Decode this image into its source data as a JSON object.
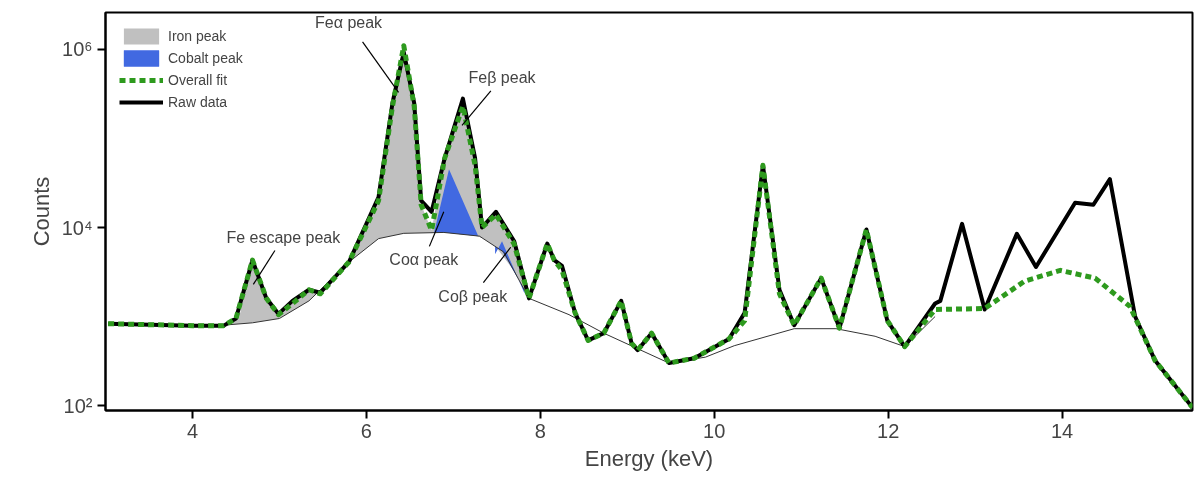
{
  "chart_data": {
    "type": "line",
    "xlabel": "Energy (keV)",
    "ylabel": "Counts",
    "log": "y",
    "grid": false,
    "legend": "top left",
    "xlim": [
      3,
      15.5
    ],
    "ylim": [
      88,
      2600000
    ],
    "xticks": [
      4,
      6,
      8,
      10,
      12,
      14
    ],
    "yticks": [
      {
        "value": 100,
        "label": "10²"
      },
      {
        "value": 10000,
        "label": "10⁴"
      },
      {
        "value": 1000000,
        "label": "10⁶"
      }
    ],
    "series": [
      {
        "name": "Iron peak",
        "type": "area",
        "color": "#c0c0c0",
        "x": [
          4.4,
          4.55,
          4.69,
          4.85,
          4.99,
          5.15,
          5.34,
          5.47,
          5.8,
          6.14,
          6.3,
          6.43,
          6.55,
          6.63,
          6.75,
          6.9,
          7.11,
          7.25,
          7.33,
          7.49,
          7.7,
          7.87
        ],
        "values": [
          800,
          1100,
          4300,
          1600,
          1050,
          1400,
          2000,
          1800,
          4100,
          20000,
          230000,
          1100000,
          230000,
          18000,
          9300,
          60000,
          230000,
          50000,
          10000,
          14000,
          6500,
          1600
        ]
      },
      {
        "name": "Cobalt peak",
        "type": "area",
        "color": "#4169e1",
        "x": [
          6.78,
          6.95,
          7.28,
          null,
          7.48,
          7.56,
          7.82
        ],
        "values": [
          8900,
          45000,
          8300,
          null,
          5000,
          7000,
          1800
        ]
      },
      {
        "name": "Overall fit",
        "type": "line",
        "line_style": "dashed",
        "color": "#2e9a1e",
        "x": [
          3.03,
          4.0,
          4.36,
          4.5,
          4.69,
          4.85,
          4.99,
          5.15,
          5.34,
          5.47,
          5.8,
          6.14,
          6.3,
          6.43,
          6.55,
          6.63,
          6.75,
          6.9,
          7.11,
          7.25,
          7.33,
          7.49,
          7.7,
          7.87,
          8.08,
          8.16,
          8.25,
          8.4,
          8.55,
          8.73,
          8.93,
          9.05,
          9.12,
          9.28,
          9.48,
          9.77,
          10.17,
          10.35,
          10.56,
          10.75,
          10.92,
          11.23,
          11.44,
          11.75,
          11.99,
          12.19,
          12.54,
          13.11,
          13.57,
          13.98,
          14.38,
          14.78,
          15.07,
          15.5
        ],
        "values": [
          830,
          790,
          790,
          950,
          4300,
          1600,
          1050,
          1400,
          2000,
          1800,
          4100,
          20000,
          230000,
          1100000,
          230000,
          18000,
          9300,
          60000,
          230000,
          50000,
          10000,
          14000,
          6500,
          1600,
          6600,
          4300,
          3300,
          1100,
          540,
          650,
          1500,
          500,
          420,
          650,
          300,
          340,
          560,
          900,
          50000,
          1800,
          800,
          2700,
          740,
          9500,
          900,
          460,
          1200,
          1230,
          2500,
          3300,
          2700,
          1300,
          320,
          95
        ]
      },
      {
        "name": "Raw data",
        "type": "line",
        "line_style": "solid",
        "color": "#000000",
        "x": [
          3.03,
          4.0,
          4.36,
          4.5,
          4.69,
          4.85,
          4.99,
          5.15,
          5.34,
          5.47,
          5.8,
          6.14,
          6.3,
          6.43,
          6.55,
          6.63,
          6.75,
          6.9,
          7.11,
          7.25,
          7.33,
          7.49,
          7.7,
          7.87,
          8.08,
          8.16,
          8.25,
          8.4,
          8.55,
          8.73,
          8.93,
          9.05,
          9.12,
          9.28,
          9.48,
          9.77,
          10.17,
          10.35,
          10.56,
          10.75,
          10.92,
          11.23,
          11.44,
          11.75,
          11.99,
          12.19,
          12.54,
          12.6,
          12.85,
          13.11,
          13.48,
          13.7,
          14.15,
          14.36,
          14.55,
          14.84,
          15.07,
          15.5
        ],
        "values": [
          830,
          790,
          790,
          950,
          4300,
          1600,
          1070,
          1500,
          2000,
          1850,
          4100,
          22000,
          250000,
          930000,
          250000,
          20000,
          15000,
          60000,
          280000,
          60000,
          10000,
          15000,
          7000,
          1600,
          6600,
          4300,
          3700,
          1100,
          540,
          650,
          1500,
          500,
          420,
          650,
          300,
          340,
          560,
          1100,
          50000,
          2000,
          800,
          2700,
          740,
          9500,
          900,
          460,
          1400,
          1500,
          11000,
          1200,
          8500,
          3600,
          19000,
          18000,
          35000,
          1000,
          320,
          95
        ]
      },
      {
        "line_style": "solid",
        "color": "#333333",
        "x": [
          3.03,
          4.36,
          4.69,
          5.0,
          5.34,
          5.8,
          6.14,
          6.43,
          6.89,
          7.3,
          7.58,
          7.87,
          8.33,
          8.73,
          9.48,
          9.9,
          10.23,
          10.92,
          11.4,
          11.85,
          12.19,
          12.54
        ],
        "values": [
          810,
          800,
          850,
          950,
          1500,
          4100,
          7500,
          8600,
          8800,
          8000,
          5300,
          1600,
          1050,
          650,
          300,
          350,
          470,
          730,
          730,
          600,
          460,
          1000
        ]
      }
    ],
    "annotations": [
      {
        "text": "Fe escape peak",
        "x": 4.7,
        "y": 2300
      },
      {
        "text": "Feα peak",
        "x": 6.37,
        "y": 330000
      },
      {
        "text": "Feβ peak",
        "x": 7.1,
        "y": 140000
      },
      {
        "text": "Coα peak",
        "x": 6.89,
        "y": 15000
      },
      {
        "text": "Coβ peak",
        "x": 7.66,
        "y": 6000
      }
    ]
  }
}
